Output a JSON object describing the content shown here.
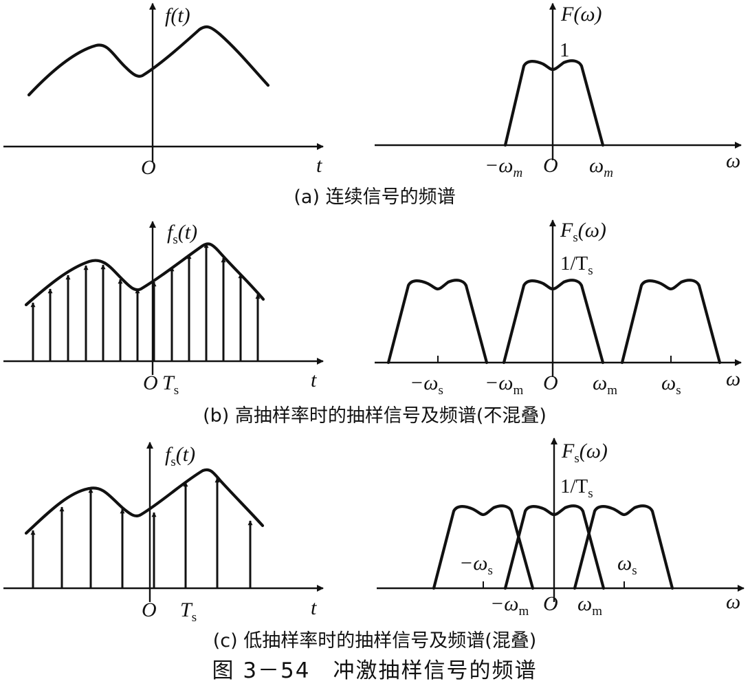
{
  "panels": {
    "a": {
      "time_ylabel": "f(t)",
      "time_origin": "O",
      "time_xlabel": "t",
      "freq_ylabel": "F(ω)",
      "freq_peak": "1",
      "freq_ticks": [
        "−ω",
        "O",
        "ω"
      ],
      "freq_xlabel": "ω",
      "caption": "(a) 连续信号的频谱"
    },
    "b": {
      "time_ylabel": "f",
      "time_origin": "O",
      "time_period": "T",
      "time_xlabel": "t",
      "freq_ylabel": "F",
      "freq_peak": "1/T",
      "freq_xlabel": "ω",
      "caption": "(b) 高抽样率时的抽样信号及频谱(不混叠)"
    },
    "c": {
      "time_ylabel": "f",
      "time_origin": "O",
      "time_period": "T",
      "time_xlabel": "t",
      "freq_ylabel": "F",
      "freq_peak": "1/T",
      "freq_xlabel": "ω",
      "caption": "(c) 低抽样率时的抽样信号及频谱(混叠)"
    }
  },
  "figure_caption": "图 3－54　冲激抽样信号的频谱"
}
